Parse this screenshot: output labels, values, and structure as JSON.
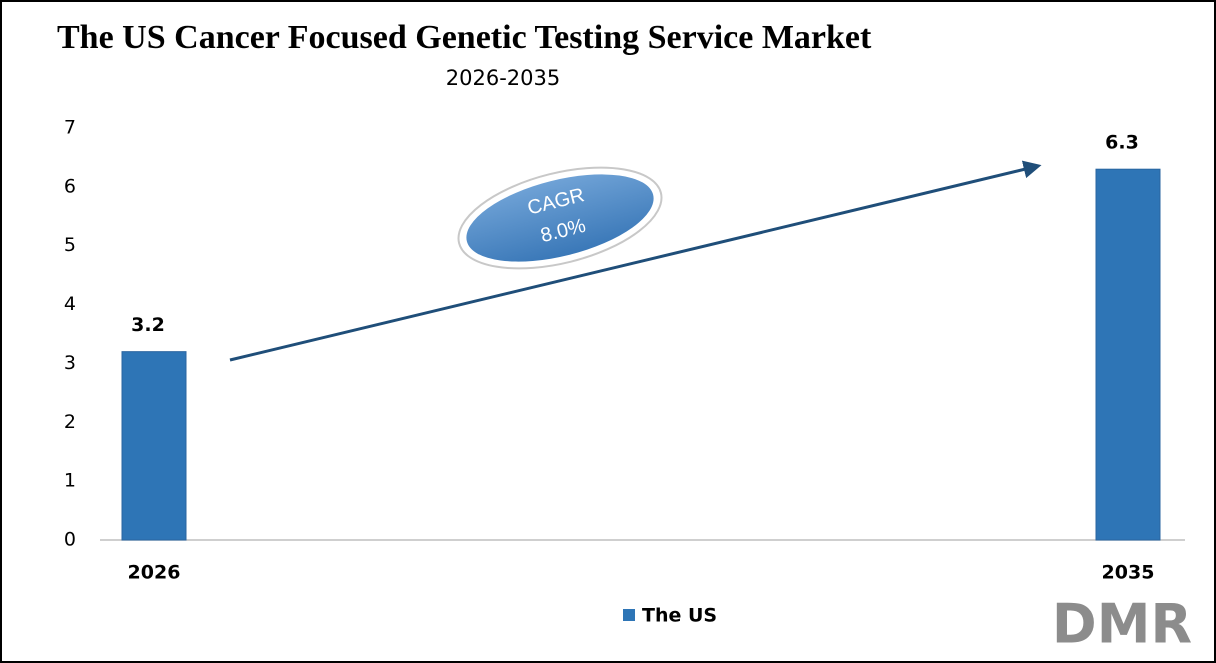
{
  "chart_data": {
    "type": "bar",
    "title": "The US Cancer Focused Genetic Testing Service Market",
    "subtitle": "2026-2035",
    "categories": [
      "2026",
      "2035"
    ],
    "series": [
      {
        "name": "The US",
        "color": "#2e75b6",
        "values": [
          3.2,
          6.3
        ]
      }
    ],
    "ylim": [
      0,
      7
    ],
    "yticks": [
      0,
      1,
      2,
      3,
      4,
      5,
      6,
      7
    ],
    "grid": false,
    "legend": "bottom",
    "annotations": [
      "CAGR",
      "8.0%"
    ]
  },
  "logo": "DMR"
}
